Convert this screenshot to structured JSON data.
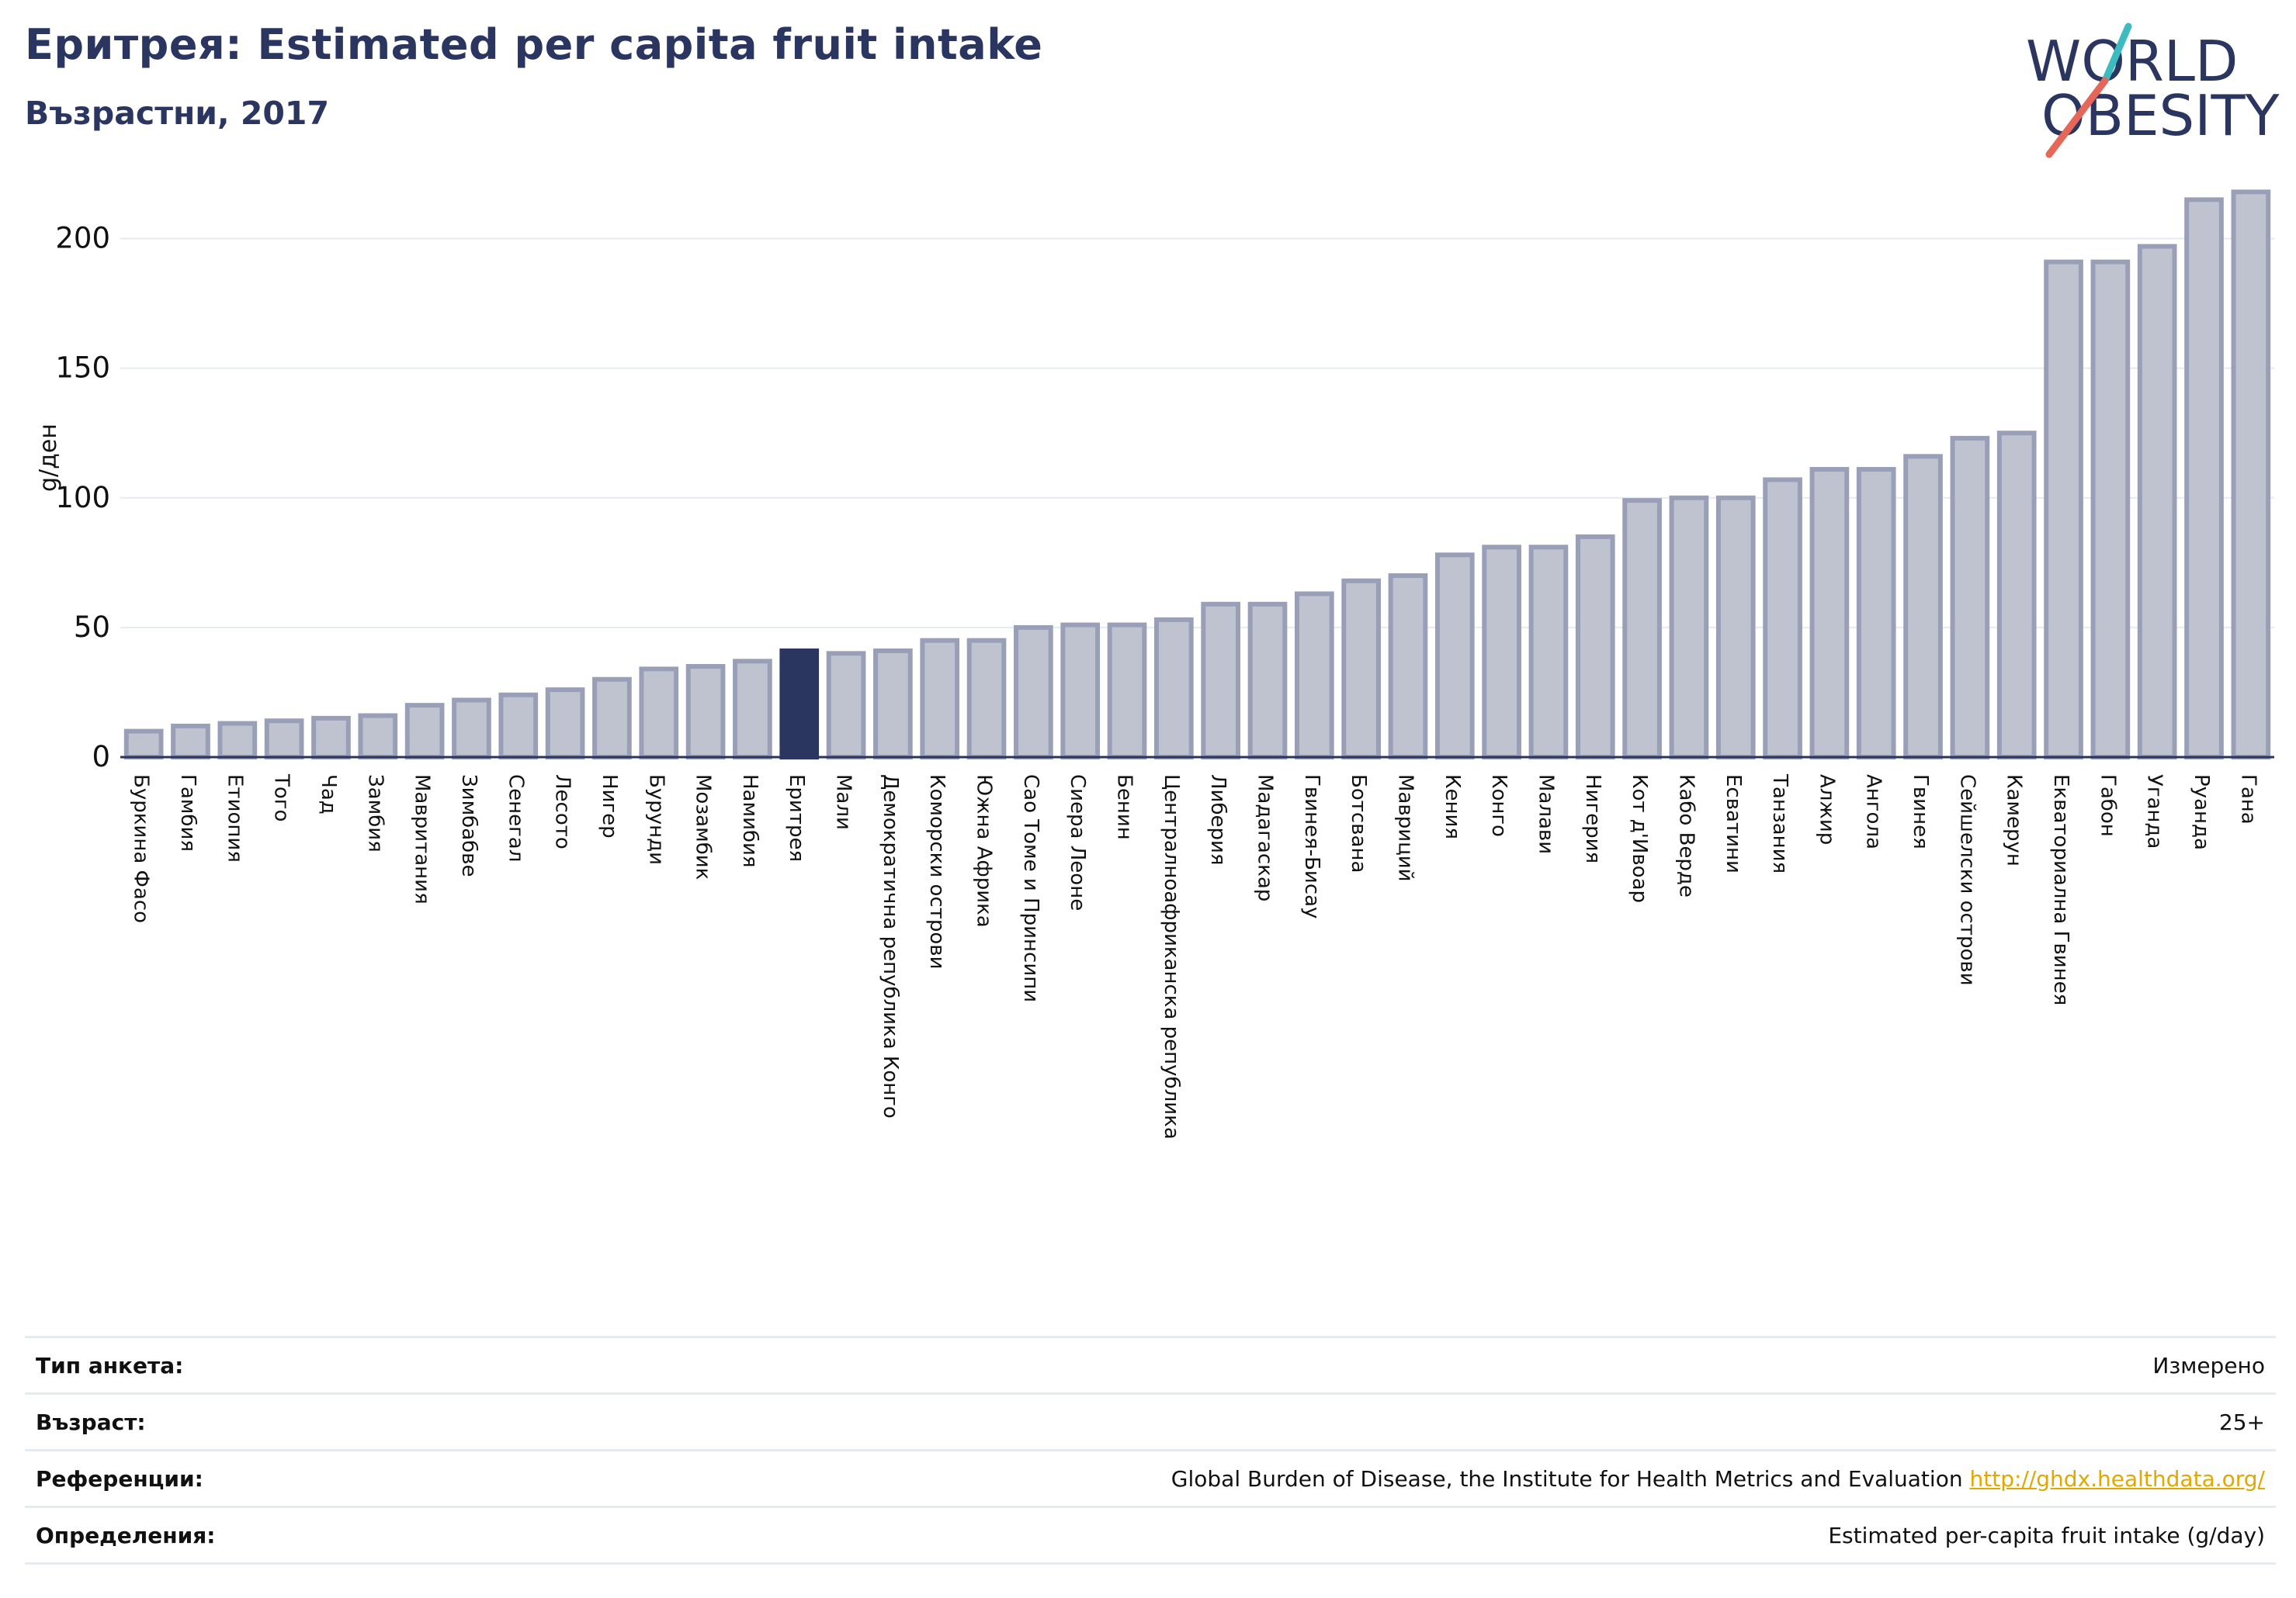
{
  "header": {
    "title": "Еритрея: Estimated per capita fruit intake",
    "subtitle": "Възрастни, 2017"
  },
  "logo": {
    "line1": "WORLD",
    "line2": "OBESITY",
    "colors": {
      "text": "#2a3560",
      "slash_teal": "#3dbcc0",
      "slash_red": "#e5675a"
    }
  },
  "colors": {
    "bar_fill": "#bfc3d0",
    "bar_stroke": "#9a9fb8",
    "highlight": "#2a3560",
    "grid": "#e6ebf2",
    "axis": "#2a3560"
  },
  "chart_data": {
    "type": "bar",
    "ylabel": "g/ден",
    "ylim": [
      0,
      225
    ],
    "yticks": [
      0,
      50,
      100,
      150,
      200
    ],
    "grid": true,
    "highlight_category": "Еритрея",
    "categories": [
      "Буркина Фасо",
      "Гамбия",
      "Етиопия",
      "Того",
      "Чад",
      "Замбия",
      "Мавритания",
      "Зимбабве",
      "Сенегал",
      "Лесото",
      "Нигер",
      "Бурунди",
      "Мозамбик",
      "Намибия",
      "Еритрея",
      "Мали",
      "Демократична република Конго",
      "Коморски острови",
      "Южна Африка",
      "Сао Томе и Принсипи",
      "Сиера Леоне",
      "Бенин",
      "Централноафриканска република",
      "Либерия",
      "Мадагаскар",
      "Гвинея-Бисау",
      "Ботсвана",
      "Мавриций",
      "Кения",
      "Конго",
      "Малави",
      "Нигерия",
      "Кот д'Ивоар",
      "Кабо Верде",
      "Есватини",
      "Танзания",
      "Алжир",
      "Ангола",
      "Гвинея",
      "Сейшелски острови",
      "Камерун",
      "Екваториална Гвинея",
      "Габон",
      "Уганда",
      "Руанда",
      "Гана"
    ],
    "values": [
      10,
      12,
      13,
      14,
      15,
      16,
      20,
      22,
      24,
      26,
      30,
      34,
      35,
      37,
      41,
      40,
      41,
      45,
      45,
      50,
      51,
      51,
      53,
      59,
      59,
      63,
      68,
      70,
      78,
      81,
      81,
      85,
      99,
      100,
      100,
      107,
      111,
      111,
      116,
      123,
      125,
      191,
      191,
      197,
      215,
      218
    ]
  },
  "meta": {
    "rows": [
      {
        "label": "Тип анкета:",
        "value": "Измерено"
      },
      {
        "label": "Възраст:",
        "value": "25+"
      },
      {
        "label": "Референции:",
        "value": "Global Burden of Disease, the Institute for Health Metrics and Evaluation",
        "link": "http://ghdx.healthdata.org/"
      },
      {
        "label": "Определения:",
        "value": "Estimated per-capita fruit intake (g/day)"
      }
    ]
  }
}
